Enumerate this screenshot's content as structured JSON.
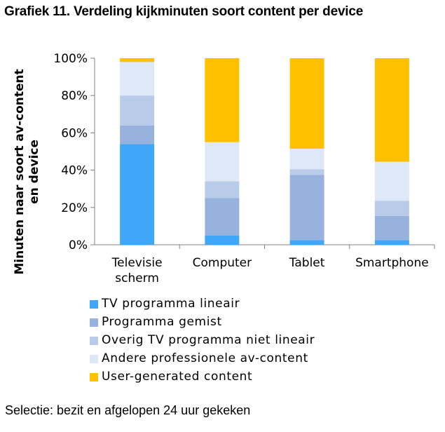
{
  "title": "Grafiek 11. Verdeling kijkminuten soort content per device",
  "note": "Selectie: bezit en afgelopen 24 uur gekeken",
  "chart_data": {
    "type": "stacked-bar-100",
    "ylabel_lines": [
      "Minuten naar soort av-content",
      "en device"
    ],
    "ylim": [
      0,
      100
    ],
    "yticks": [
      "0%",
      "20%",
      "40%",
      "60%",
      "80%",
      "100%"
    ],
    "categories": [
      [
        "Televisie",
        "scherm"
      ],
      [
        "Computer"
      ],
      [
        "Tablet"
      ],
      [
        "Smartphone"
      ]
    ],
    "series": [
      {
        "name": "TV programma lineair",
        "color": "#3fa6f8",
        "values": [
          54,
          5,
          2.5,
          2.5
        ]
      },
      {
        "name": "Programma gemist",
        "color": "#97b2dc",
        "values": [
          10,
          20,
          35,
          13
        ]
      },
      {
        "name": "Overig TV programma niet lineair",
        "color": "#b8cbe9",
        "values": [
          16,
          9,
          3,
          8
        ]
      },
      {
        "name": "Andere professionele av-content",
        "color": "#dfe8f6",
        "values": [
          18,
          21,
          11,
          21
        ]
      },
      {
        "name": "User-generated content",
        "color": "#ffc000",
        "values": [
          2,
          45,
          48.5,
          55.5
        ]
      }
    ]
  }
}
